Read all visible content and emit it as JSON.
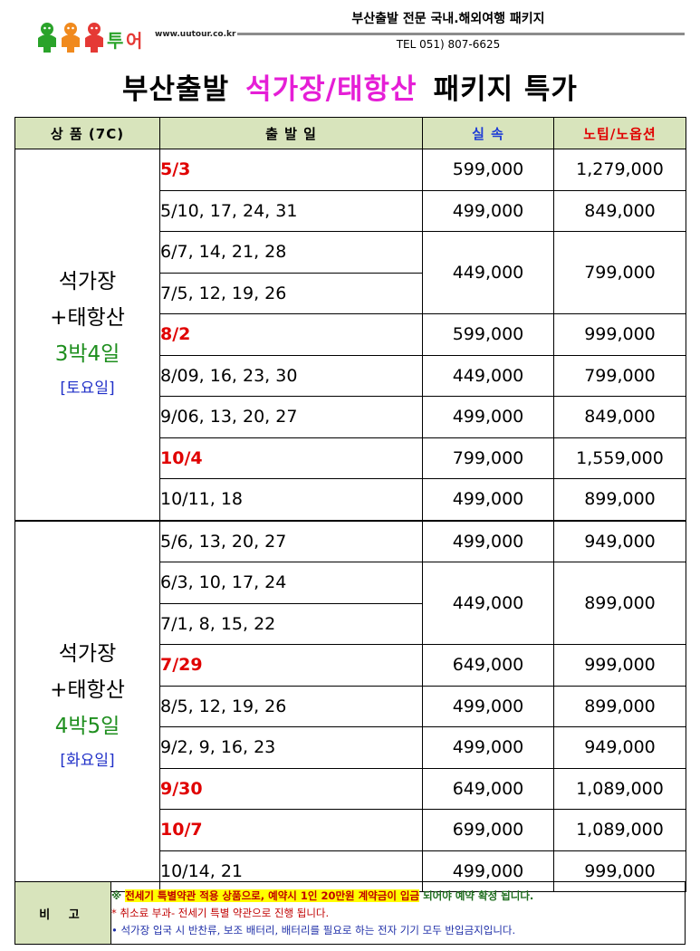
{
  "header": {
    "logo_text": "유유투어",
    "url": "www.uutour.co.kr",
    "tagline": "부산출발 전문 국내.해외여행 패키지",
    "tel": "TEL 051) 807-6625"
  },
  "title": {
    "prefix": "부산출발",
    "highlight": "석가장/태항산",
    "suffix": "패키지 특가"
  },
  "table": {
    "headers": {
      "product": "상 품 (7C)",
      "date": "출 발 일",
      "price": "실 속",
      "price2": "노팁/노옵션"
    },
    "groups": [
      {
        "name1": "석가장",
        "name2": "+태항산",
        "nights": "3박4일",
        "day": "[토요일]",
        "rows": [
          {
            "date": "5/3",
            "red": true,
            "price": "599,000",
            "price2": "1,279,000"
          },
          {
            "date": "5/10, 17, 24, 31",
            "red": false,
            "price": "499,000",
            "price2": "849,000"
          },
          {
            "date": "6/7, 14, 21, 28",
            "red": false,
            "price": "449,000",
            "price2": "799,000"
          },
          {
            "date": "7/5, 12, 19, 26",
            "red": false
          },
          {
            "date": "8/2",
            "red": true,
            "price": "599,000",
            "price2": "999,000"
          },
          {
            "date": "8/09, 16, 23, 30",
            "red": false,
            "price": "449,000",
            "price2": "799,000"
          },
          {
            "date": "9/06, 13, 20, 27",
            "red": false,
            "price": "499,000",
            "price2": "849,000"
          },
          {
            "date": "10/4",
            "red": true,
            "price": "799,000",
            "price2": "1,559,000"
          },
          {
            "date": "10/11, 18",
            "red": false,
            "price": "499,000",
            "price2": "899,000"
          }
        ]
      },
      {
        "name1": "석가장",
        "name2": "+태항산",
        "nights": "4박5일",
        "day": "[화요일]",
        "rows": [
          {
            "date": "5/6, 13, 20, 27",
            "red": false,
            "price": "499,000",
            "price2": "949,000"
          },
          {
            "date": "6/3, 10, 17, 24",
            "red": false,
            "price": "449,000",
            "price2": "899,000"
          },
          {
            "date": "7/1, 8, 15, 22",
            "red": false
          },
          {
            "date": "7/29",
            "red": true,
            "price": "649,000",
            "price2": "999,000"
          },
          {
            "date": "8/5, 12, 19, 26",
            "red": false,
            "price": "499,000",
            "price2": "899,000"
          },
          {
            "date": "9/2, 9, 16, 23",
            "red": false,
            "price": "499,000",
            "price2": "949,000"
          },
          {
            "date": "9/30",
            "red": true,
            "price": "649,000",
            "price2": "1,089,000"
          },
          {
            "date": "10/7",
            "red": true,
            "price": "699,000",
            "price2": "1,089,000"
          },
          {
            "date": "10/14, 21",
            "red": false,
            "price": "499,000",
            "price2": "999,000"
          }
        ]
      }
    ]
  },
  "remarks": {
    "label": "비 고",
    "line1_mark": "※ ",
    "line1_highlight": "전세기 특별약관 적용 상품으로, 예약시 1인 20만원 계약금이 입금",
    "line1_rest": " 되어야 예약 확정 됩니다.",
    "line2": "* 취소료 부과- 전세기 특별 약관으로 진행 됩니다.",
    "line3": "• 석가장 입국 시 반찬류, 보조 배터리, 배터리를 필요로 하는 전자 기기 모두 반입금지입니다."
  },
  "colors": {
    "header_bg": "#d8e4bc",
    "title_highlight": "#e51ed6",
    "red_date": "#e00000",
    "price_header": "#1f3dd6",
    "nights_green": "#1f8f1f",
    "weekday_blue": "#2030c8"
  }
}
